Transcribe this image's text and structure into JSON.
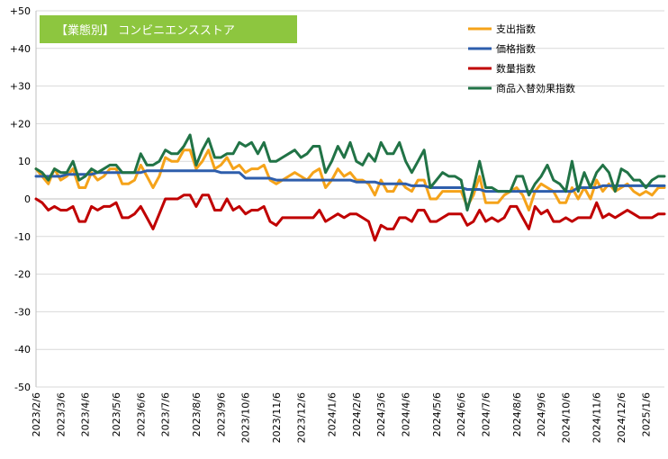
{
  "chart_data": {
    "type": "line",
    "title_badge": "【業態別】 コンビニエンスストア",
    "ylim": [
      -50,
      50
    ],
    "yticks": [
      {
        "v": 50,
        "label": "+50"
      },
      {
        "v": 40,
        "label": "+40"
      },
      {
        "v": 30,
        "label": "+30"
      },
      {
        "v": 20,
        "label": "+20"
      },
      {
        "v": 10,
        "label": "10"
      },
      {
        "v": 0,
        "label": "0"
      },
      {
        "v": -10,
        "label": "-10"
      },
      {
        "v": -20,
        "label": "-20"
      },
      {
        "v": -30,
        "label": "-30"
      },
      {
        "v": -40,
        "label": "-40"
      },
      {
        "v": -50,
        "label": "-50"
      }
    ],
    "xticks": [
      {
        "week": 0,
        "label": "2023/2/6"
      },
      {
        "week": 4,
        "label": "2023/3/6"
      },
      {
        "week": 8,
        "label": "2023/4/6"
      },
      {
        "week": 13,
        "label": "2023/5/6"
      },
      {
        "week": 17,
        "label": "2023/6/6"
      },
      {
        "week": 21,
        "label": "2023/7/6"
      },
      {
        "week": 26,
        "label": "2023/8/6"
      },
      {
        "week": 30,
        "label": "2023/9/6"
      },
      {
        "week": 34,
        "label": "2023/10/6"
      },
      {
        "week": 39,
        "label": "2023/11/6"
      },
      {
        "week": 43,
        "label": "2023/12/6"
      },
      {
        "week": 48,
        "label": "2024/1/6"
      },
      {
        "week": 52,
        "label": "2024/2/6"
      },
      {
        "week": 56,
        "label": "2024/3/6"
      },
      {
        "week": 60,
        "label": "2024/4/6"
      },
      {
        "week": 65,
        "label": "2024/5/6"
      },
      {
        "week": 69,
        "label": "2024/6/6"
      },
      {
        "week": 73,
        "label": "2024/7/6"
      },
      {
        "week": 78,
        "label": "2024/8/6"
      },
      {
        "week": 82,
        "label": "2024/9/6"
      },
      {
        "week": 86,
        "label": "2024/10/6"
      },
      {
        "week": 91,
        "label": "2024/11/6"
      },
      {
        "week": 95,
        "label": "2024/12/6"
      },
      {
        "week": 99,
        "label": "2025/1/6"
      }
    ],
    "x_start_date": "2023/2/6",
    "x_step": "1 week",
    "legend_position": "top-right",
    "series": [
      {
        "name": "支出指数",
        "color": "#f5a31a",
        "values": [
          8,
          6,
          4,
          8,
          5,
          6,
          8,
          3,
          3,
          7,
          5,
          6,
          8,
          8,
          4,
          4,
          5,
          9,
          6,
          3,
          6,
          11,
          10,
          10,
          13,
          13,
          8,
          10,
          13,
          8,
          9,
          11,
          8,
          9,
          7,
          8,
          8,
          9,
          5,
          4,
          5,
          6,
          7,
          6,
          5,
          7,
          8,
          3,
          5,
          8,
          6,
          7,
          5,
          5,
          4,
          1,
          5,
          2,
          2,
          5,
          3,
          2,
          5,
          5,
          0,
          0,
          2,
          2,
          2,
          2,
          -2,
          1,
          6,
          -1,
          -1,
          -1,
          1,
          2,
          3,
          1,
          -3,
          2,
          4,
          3,
          2,
          -1,
          -1,
          3,
          0,
          3,
          0,
          5,
          2,
          4,
          2,
          3,
          4,
          2,
          1,
          2,
          1,
          3,
          3
        ]
      },
      {
        "name": "価格指数",
        "color": "#2e5eac",
        "values": [
          6,
          6,
          6,
          6,
          6,
          6.5,
          6.5,
          6.5,
          6.5,
          6.5,
          7,
          7,
          7,
          7,
          7,
          7,
          7,
          7,
          7.5,
          7.5,
          7.5,
          7.5,
          7.5,
          7.5,
          7.5,
          7.5,
          7.5,
          7.5,
          7.5,
          7.5,
          7,
          7,
          7,
          7,
          5.5,
          5.5,
          5.5,
          5.5,
          5.5,
          5,
          5,
          5,
          5,
          5,
          5,
          5,
          5,
          5,
          5,
          5,
          5,
          5,
          4.5,
          4.5,
          4.5,
          4.5,
          4,
          4,
          4,
          4,
          4,
          3.5,
          3.5,
          3.5,
          3,
          3,
          3,
          3,
          3,
          3,
          2.5,
          2.5,
          2.5,
          2,
          2,
          2,
          2,
          2,
          2,
          2,
          2,
          2,
          2,
          2,
          2,
          2,
          2,
          2,
          3,
          3,
          3,
          3,
          3.5,
          3.5,
          3.5,
          3.5,
          3.5,
          3.5,
          3.5,
          3.5,
          3.5,
          3.5,
          3.5
        ]
      },
      {
        "name": "数量指数",
        "color": "#c00000",
        "values": [
          0,
          -1,
          -3,
          -2,
          -3,
          -3,
          -2,
          -6,
          -6,
          -2,
          -3,
          -2,
          -2,
          -1,
          -5,
          -5,
          -4,
          -2,
          -5,
          -8,
          -4,
          0,
          0,
          0,
          1,
          1,
          -2,
          1,
          1,
          -3,
          -3,
          0,
          -3,
          -2,
          -4,
          -3,
          -3,
          -2,
          -6,
          -7,
          -5,
          -5,
          -5,
          -5,
          -5,
          -5,
          -3,
          -6,
          -5,
          -4,
          -5,
          -4,
          -4,
          -5,
          -6,
          -11,
          -7,
          -8,
          -8,
          -5,
          -5,
          -6,
          -3,
          -3,
          -6,
          -6,
          -5,
          -4,
          -4,
          -4,
          -7,
          -6,
          -3,
          -6,
          -5,
          -6,
          -5,
          -2,
          -2,
          -5,
          -8,
          -2,
          -4,
          -3,
          -6,
          -6,
          -5,
          -6,
          -5,
          -5,
          -5,
          -1,
          -5,
          -4,
          -5,
          -4,
          -3,
          -4,
          -5,
          -5,
          -5,
          -4,
          -4
        ]
      },
      {
        "name": "商品入替効果指数",
        "color": "#217346",
        "values": [
          8,
          7,
          5,
          8,
          7,
          7,
          10,
          5,
          6,
          8,
          7,
          8,
          9,
          9,
          7,
          7,
          7,
          12,
          9,
          9,
          10,
          13,
          12,
          12,
          14,
          17,
          9,
          13,
          16,
          11,
          11,
          12,
          12,
          15,
          14,
          15,
          12,
          15,
          10,
          10,
          11,
          12,
          13,
          11,
          12,
          14,
          14,
          7,
          10,
          14,
          11,
          15,
          10,
          9,
          12,
          10,
          15,
          12,
          12,
          15,
          10,
          7,
          10,
          13,
          3,
          5,
          7,
          6,
          6,
          5,
          -3,
          3,
          10,
          3,
          3,
          2,
          2,
          2,
          6,
          6,
          1,
          4,
          6,
          9,
          5,
          4,
          2,
          10,
          2,
          7,
          3,
          7,
          9,
          7,
          2,
          8,
          7,
          5,
          5,
          3,
          5,
          6,
          6
        ]
      }
    ]
  }
}
